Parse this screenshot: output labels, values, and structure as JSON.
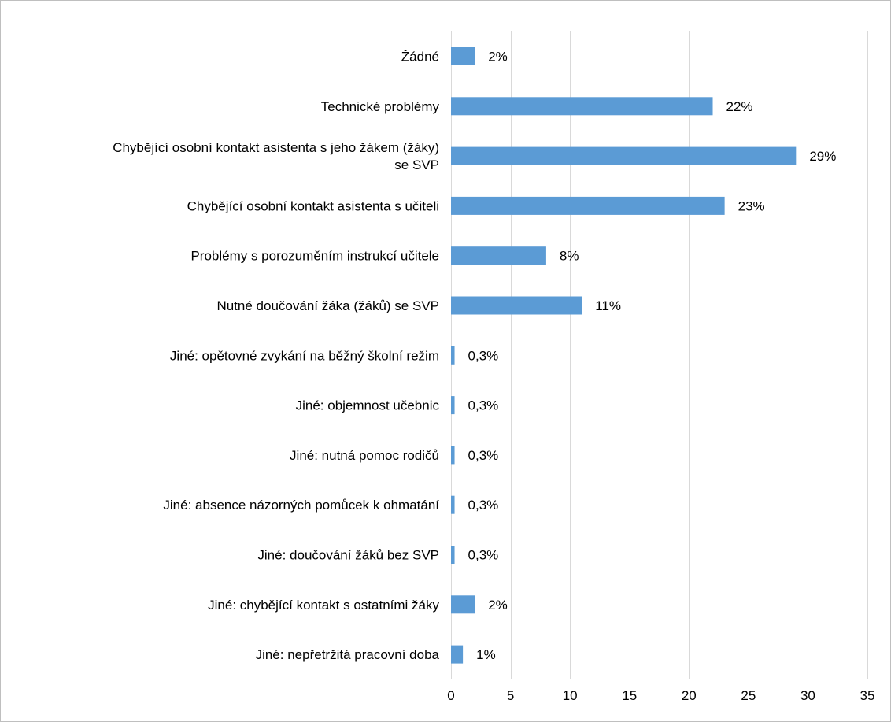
{
  "chart_data": {
    "type": "bar",
    "orientation": "horizontal",
    "categories": [
      [
        "Žádné"
      ],
      [
        "Technické problémy"
      ],
      [
        "Chybějící osobní kontakt asistenta s jeho žákem (žáky)",
        "se SVP"
      ],
      [
        "Chybějící osobní kontakt asistenta s učiteli"
      ],
      [
        "Problémy s porozuměním instrukcí učitele"
      ],
      [
        "Nutné doučování žáka (žáků) se SVP"
      ],
      [
        "Jiné: opětovné zvykání na běžný školní režim"
      ],
      [
        "Jiné: objemnost učebnic"
      ],
      [
        "Jiné: nutná pomoc rodičů"
      ],
      [
        "Jiné: absence názorných pomůcek k ohmatání"
      ],
      [
        "Jiné: doučování žáků bez SVP"
      ],
      [
        "Jiné: chybějící kontakt s ostatními žáky"
      ],
      [
        "Jiné: nepřetržitá pracovní doba"
      ]
    ],
    "values": [
      2,
      22,
      29,
      23,
      8,
      11,
      0.3,
      0.3,
      0.3,
      0.3,
      0.3,
      2,
      1
    ],
    "data_labels": [
      "2%",
      "22%",
      "29%",
      "23%",
      "8%",
      "11%",
      "0,3%",
      "0,3%",
      "0,3%",
      "0,3%",
      "0,3%",
      "2%",
      "1%"
    ],
    "xlim": [
      0,
      35
    ],
    "xticks": [
      0,
      5,
      10,
      15,
      20,
      25,
      30,
      35
    ],
    "xtick_labels": [
      "0",
      "5",
      "10",
      "15",
      "20",
      "25",
      "30",
      "35"
    ],
    "grid": "vertical",
    "legend": "none",
    "bar_color": "#5b9bd5",
    "gridline_color": "#d9d9d9"
  }
}
